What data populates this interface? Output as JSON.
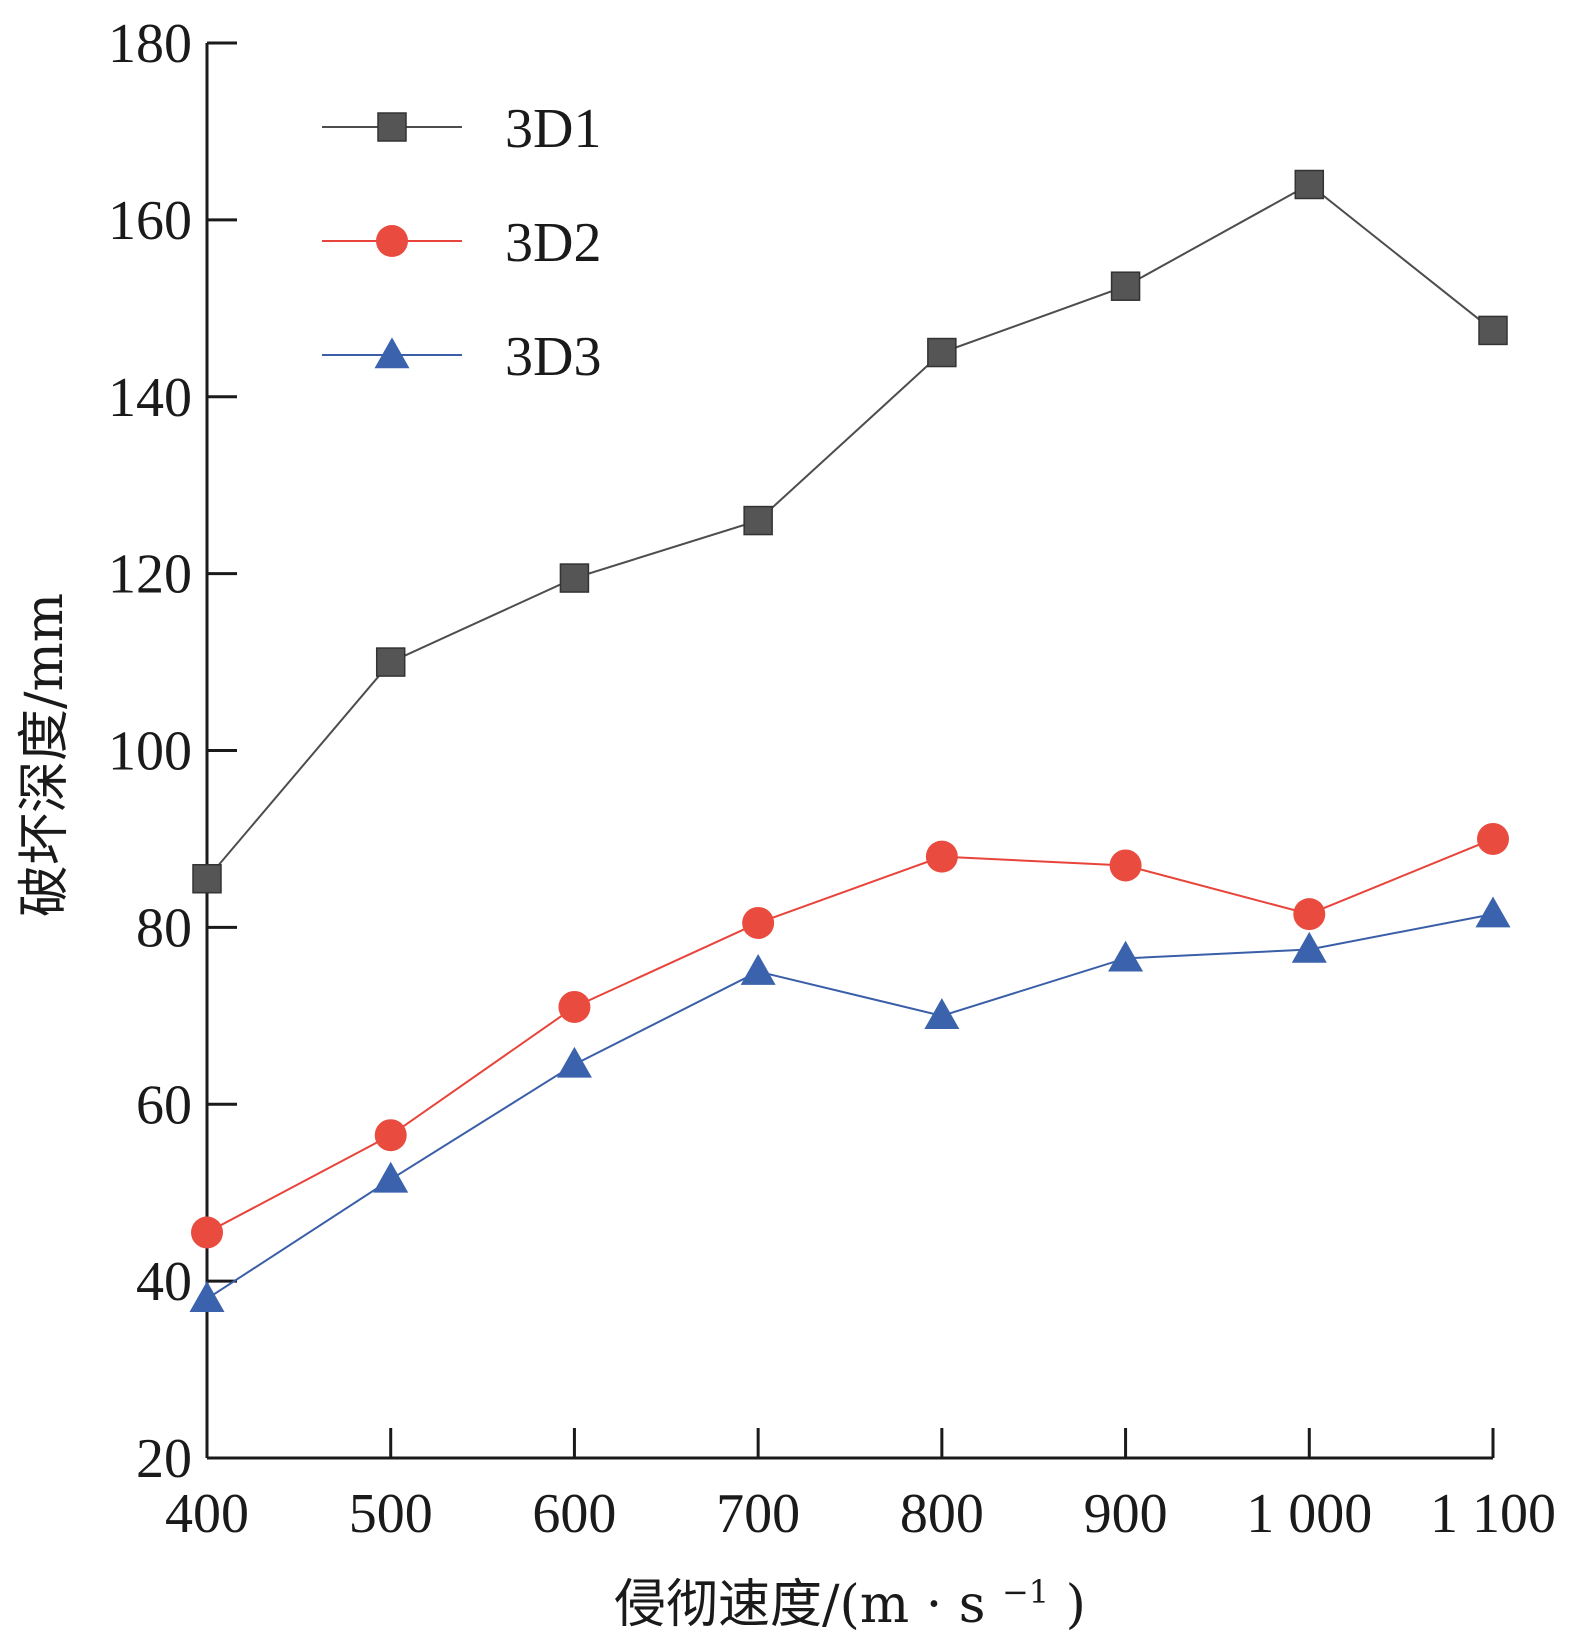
{
  "chart_data": {
    "type": "line",
    "xlabel_main": "侵彻速度/(m",
    "xlabel_dot": "·",
    "xlabel_s": "s",
    "xlabel_sup": "−1",
    "xlabel_close": ")",
    "ylabel": "破坏深度/mm",
    "x": [
      400,
      500,
      600,
      700,
      800,
      900,
      1000,
      1100
    ],
    "x_tick_labels": [
      "400",
      "500",
      "600",
      "700",
      "800",
      "900",
      "1 000",
      "1 100"
    ],
    "y_ticks": [
      20,
      40,
      60,
      80,
      100,
      120,
      140,
      160,
      180
    ],
    "y_tick_labels": [
      "20",
      "40",
      "60",
      "80",
      "100",
      "120",
      "140",
      "160",
      "180"
    ],
    "xlim": [
      400,
      1100
    ],
    "ylim": [
      20,
      180
    ],
    "legend_position": "top-left",
    "series": [
      {
        "name": "3D1",
        "marker": "square",
        "line_color": "#4d4d4d",
        "marker_color": "#555555",
        "values": [
          85.5,
          110,
          119.5,
          126,
          145,
          152.5,
          164,
          147.5
        ]
      },
      {
        "name": "3D2",
        "marker": "circle",
        "line_color": "#e8443a",
        "marker_color": "#ea4b3f",
        "values": [
          45.5,
          56.5,
          71,
          80.5,
          88,
          87,
          81.5,
          90
        ]
      },
      {
        "name": "3D3",
        "marker": "triangle",
        "line_color": "#3a5ea8",
        "marker_color": "#3b62ad",
        "values": [
          38,
          51.5,
          64.5,
          75,
          70,
          76.5,
          77.5,
          81.5
        ]
      }
    ]
  }
}
